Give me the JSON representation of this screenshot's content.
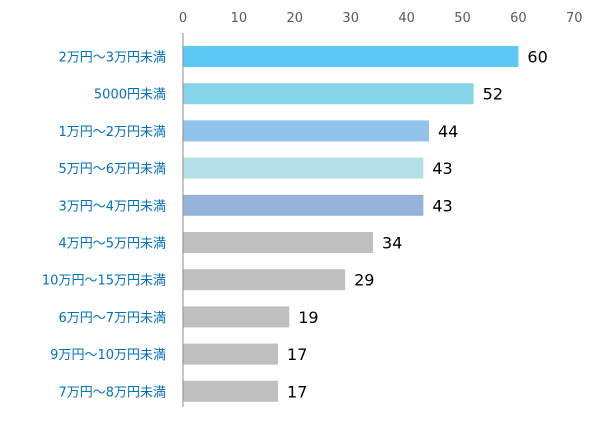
{
  "chart_data": {
    "type": "bar",
    "orientation": "horizontal",
    "categories": [
      "2万円～3万円未満",
      "5000円未満",
      "1万円～2万円未満",
      "5万円～6万円未満",
      "3万円～4万円未満",
      "4万円～5万円未満",
      "10万円～15万円未満",
      "6万円～7万円未満",
      "9万円～10万円未満",
      "7万円～8万円未満"
    ],
    "values": [
      60,
      52,
      44,
      43,
      43,
      34,
      29,
      19,
      17,
      17
    ],
    "bar_colors": [
      "#5bc8f5",
      "#85d4ea",
      "#92c3ec",
      "#b6dfea",
      "#95b3d9",
      "#bfbfbf",
      "#bfbfbf",
      "#bfbfbf",
      "#bfbfbf",
      "#bfbfbf"
    ],
    "xlim": [
      0,
      70
    ],
    "xticks": [
      0,
      10,
      20,
      30,
      40,
      50,
      60,
      70
    ],
    "axis_position": "top",
    "grid": false,
    "title": "",
    "xlabel": "",
    "ylabel": "",
    "category_label_color": "#0070c0",
    "data_label_color": "#000000"
  }
}
